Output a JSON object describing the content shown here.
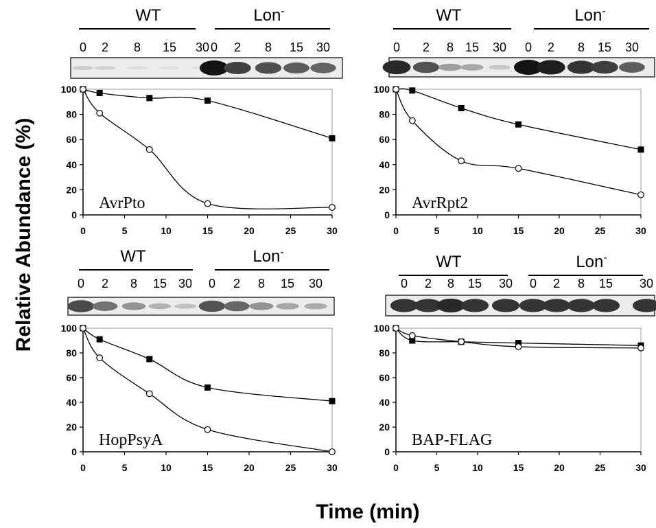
{
  "ylabel": "Relative Abundance (%)",
  "xlabel": "Time (min)",
  "blot_groups": [
    "WT",
    "Lon",
    "-"
  ],
  "lane_labels": [
    "0",
    "2",
    "8",
    "15",
    "30"
  ],
  "chart_data": [
    {
      "type": "line",
      "title": "AvrPto",
      "x": [
        0,
        2,
        8,
        15,
        30
      ],
      "xlim": [
        0,
        30
      ],
      "ylim": [
        0,
        100
      ],
      "xticks": [
        0,
        5,
        10,
        15,
        20,
        25,
        30
      ],
      "yticks": [
        0,
        20,
        40,
        60,
        80,
        100
      ],
      "series": [
        {
          "marker": "filled-square",
          "values": [
            100,
            97,
            93,
            91,
            61
          ]
        },
        {
          "marker": "open-circle",
          "values": [
            100,
            81,
            52,
            9,
            6
          ]
        }
      ],
      "blot": {
        "wt": [
          0.12,
          0.1,
          0.05,
          0.04,
          0.04
        ],
        "lon": [
          1.0,
          0.78,
          0.72,
          0.66,
          0.62
        ]
      }
    },
    {
      "type": "line",
      "title": "AvrRpt2",
      "x": [
        0,
        2,
        8,
        15,
        30
      ],
      "xlim": [
        0,
        30
      ],
      "ylim": [
        0,
        100
      ],
      "xticks": [
        0,
        5,
        10,
        15,
        20,
        25,
        30
      ],
      "yticks": [
        0,
        20,
        40,
        60,
        80,
        100
      ],
      "series": [
        {
          "marker": "filled-square",
          "values": [
            100,
            99,
            85,
            72,
            52
          ]
        },
        {
          "marker": "open-circle",
          "values": [
            100,
            75,
            43,
            37,
            16
          ]
        }
      ],
      "blot": {
        "wt": [
          0.9,
          0.7,
          0.35,
          0.3,
          0.15
        ],
        "lon": [
          1.0,
          0.95,
          0.85,
          0.8,
          0.65
        ]
      }
    },
    {
      "type": "line",
      "title": "HopPsyA",
      "x": [
        0,
        2,
        8,
        15,
        30
      ],
      "xlim": [
        0,
        30
      ],
      "ylim": [
        0,
        100
      ],
      "xticks": [
        0,
        5,
        10,
        15,
        20,
        25,
        30
      ],
      "yticks": [
        0,
        20,
        40,
        60,
        80,
        100
      ],
      "series": [
        {
          "marker": "filled-square",
          "values": [
            100,
            91,
            75,
            52,
            41
          ]
        },
        {
          "marker": "open-circle",
          "values": [
            100,
            76,
            47,
            18,
            0
          ]
        }
      ],
      "blot": {
        "wt": [
          0.75,
          0.55,
          0.4,
          0.25,
          0.18
        ],
        "lon": [
          0.7,
          0.6,
          0.4,
          0.3,
          0.28
        ]
      }
    },
    {
      "type": "line",
      "title": "BAP-FLAG",
      "x": [
        0,
        2,
        8,
        15,
        30
      ],
      "xlim": [
        0,
        30
      ],
      "ylim": [
        0,
        100
      ],
      "xticks": [
        0,
        5,
        10,
        15,
        20,
        25,
        30
      ],
      "yticks": [
        0,
        20,
        40,
        60,
        80,
        100
      ],
      "series": [
        {
          "marker": "filled-square",
          "values": [
            100,
            90,
            89,
            88,
            86
          ]
        },
        {
          "marker": "open-circle",
          "values": [
            100,
            94,
            89,
            85,
            84
          ]
        }
      ],
      "blot": {
        "wt": [
          0.85,
          0.85,
          0.9,
          0.85,
          0.85
        ],
        "lon": [
          0.85,
          0.85,
          0.85,
          0.85,
          0.85
        ]
      }
    }
  ]
}
